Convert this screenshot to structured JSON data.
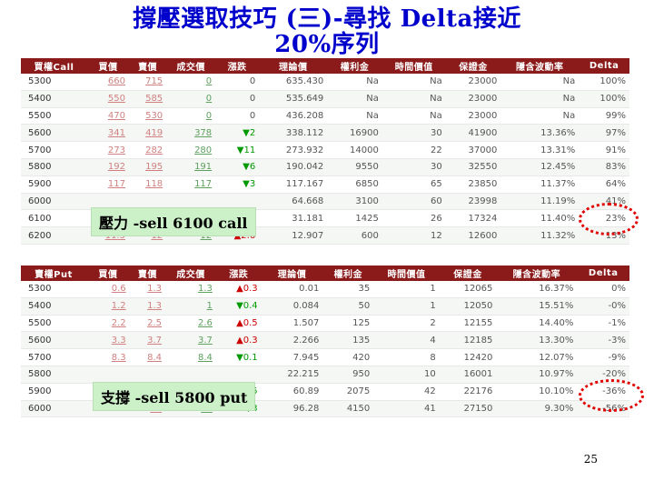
{
  "title_line1": "撐壓選取技巧 (三)-尋找 Delta接近",
  "title_line2": "20%序列",
  "call_headers": [
    "買權Call",
    "買價",
    "賣價",
    "成交價",
    "漲跌",
    "理論價",
    "權利金",
    "時間價值",
    "保證金",
    "隱含波動率",
    "Delta"
  ],
  "put_headers": [
    "賣權Put",
    "買價",
    "賣價",
    "成交價",
    "漲跌",
    "理論價",
    "權利金",
    "時間價值",
    "保證金",
    "隱含波動率",
    "Delta"
  ],
  "call_rows": [
    [
      "5300",
      "660",
      "715",
      "0",
      "0",
      "635.430",
      "Na",
      "Na",
      "23000",
      "Na",
      "100%"
    ],
    [
      "5400",
      "550",
      "585",
      "0",
      "0",
      "535.649",
      "Na",
      "Na",
      "23000",
      "Na",
      "100%"
    ],
    [
      "5500",
      "470",
      "530",
      "0",
      "0",
      "436.208",
      "Na",
      "Na",
      "23000",
      "Na",
      "99%"
    ],
    [
      "5600",
      "341",
      "419",
      "378",
      "▼2",
      "338.112",
      "16900",
      "30",
      "41900",
      "13.36%",
      "97%"
    ],
    [
      "5700",
      "273",
      "282",
      "280",
      "▼11",
      "273.932",
      "14000",
      "22",
      "37000",
      "13.31%",
      "91%"
    ],
    [
      "5800",
      "192",
      "195",
      "191",
      "▼6",
      "190.042",
      "9550",
      "30",
      "32550",
      "12.45%",
      "83%"
    ],
    [
      "5900",
      "117",
      "118",
      "117",
      "▼3",
      "117.167",
      "6850",
      "65",
      "23850",
      "11.37%",
      "64%"
    ],
    [
      "6000",
      "",
      "",
      "",
      "",
      "64.668",
      "3100",
      "60",
      "23998",
      "11.19%",
      "41%"
    ],
    [
      "6100",
      "",
      "",
      "",
      "",
      "31.181",
      "1425",
      "26",
      "17324",
      "11.40%",
      "23%"
    ],
    [
      "6200",
      "11.5",
      "12",
      "12",
      "▲2.6",
      "12.907",
      "600",
      "12",
      "12600",
      "11.32%",
      "13%"
    ]
  ],
  "put_rows": [
    [
      "5300",
      "0.6",
      "1.3",
      "1.3",
      "▲0.3",
      "0.01",
      "35",
      "1",
      "12065",
      "16.37%",
      "0%"
    ],
    [
      "5400",
      "1.2",
      "1.3",
      "1",
      "▼0.4",
      "0.084",
      "50",
      "1",
      "12050",
      "15.51%",
      "-0%"
    ],
    [
      "5500",
      "2.2",
      "2.5",
      "2.6",
      "▲0.5",
      "1.507",
      "125",
      "2",
      "12155",
      "14.40%",
      "-1%"
    ],
    [
      "5600",
      "3.3",
      "3.7",
      "3.7",
      "▲0.3",
      "2.266",
      "135",
      "4",
      "12185",
      "13.30%",
      "-3%"
    ],
    [
      "5700",
      "8.3",
      "8.4",
      "8.4",
      "▼0.1",
      "7.945",
      "420",
      "8",
      "12420",
      "12.07%",
      "-9%"
    ],
    [
      "5800",
      "",
      "",
      "",
      "",
      "22.215",
      "950",
      "10",
      "16001",
      "10.97%",
      "-20%"
    ],
    [
      "5900",
      "20.5",
      "41",
      "21.5",
      "▼3.5",
      "60.89",
      "2075",
      "42",
      "22176",
      "10.10%",
      "-36%"
    ],
    [
      "6000",
      "",
      "84",
      "93",
      "▼3",
      "96.28",
      "4150",
      "41",
      "27150",
      "9.30%",
      "-56%"
    ]
  ],
  "callout_call": "壓力 -sell 6100 call",
  "callout_put": "支撐 -sell 5800 put",
  "page_number": "25",
  "colors": {
    "title": "#0000cc",
    "header": "#8b1a1a",
    "callout": "#ccf0c8",
    "ring": "#e00000"
  }
}
